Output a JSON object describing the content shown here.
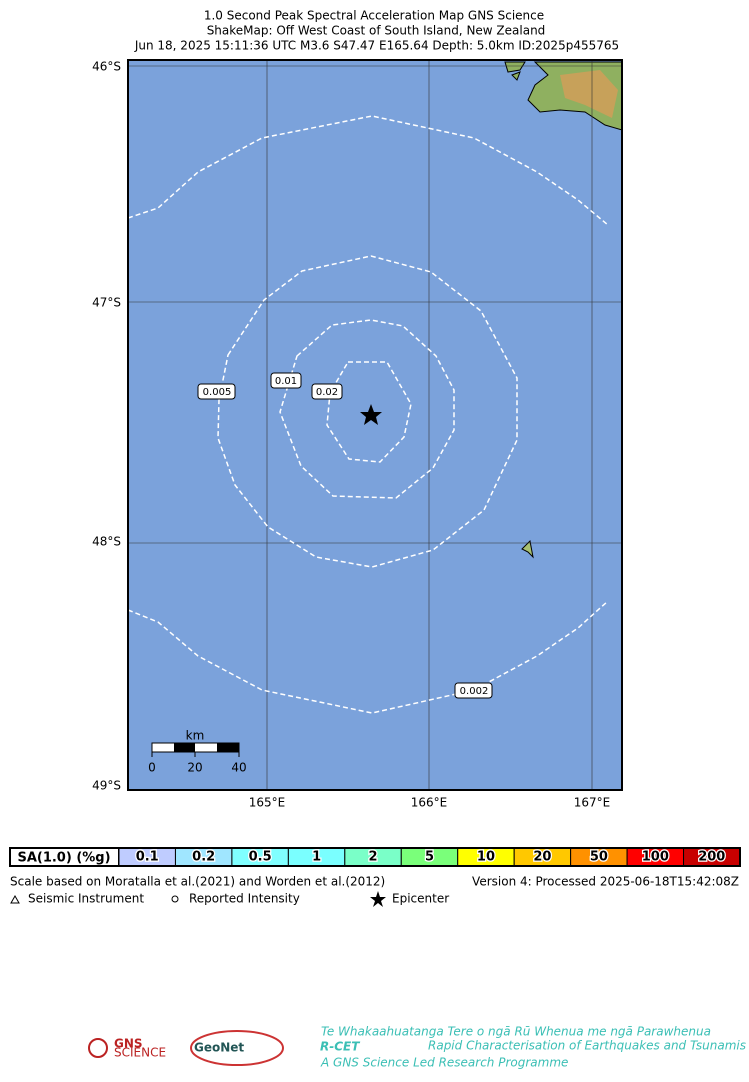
{
  "header": {
    "title_lines": [
      "1.0 Second Peak Spectral Acceleration Map GNS Science",
      "ShakeMap: Off West Coast of South Island, New Zealand",
      "Jun 18, 2025 15:11:36 UTC M3.6 S47.47 E165.64 Depth: 5.0km ID:2025p455765"
    ]
  },
  "map": {
    "lat_labels": [
      "46°S",
      "47°S",
      "48°S",
      "49°S"
    ],
    "lon_labels": [
      "165°E",
      "166°E",
      "167°E"
    ],
    "contour_labels": [
      "0.005",
      "0.01",
      "0.02",
      "0.002"
    ],
    "scale_bar": {
      "unit": "km",
      "labels": [
        "0",
        "20",
        "40"
      ]
    }
  },
  "legend": {
    "header": "SA(1.0) (%g)",
    "items": [
      {
        "label": "0.1",
        "color": "#bfccff"
      },
      {
        "label": "0.2",
        "color": "#a0e6ff"
      },
      {
        "label": "0.5",
        "color": "#80ffff"
      },
      {
        "label": "1",
        "color": "#7affff"
      },
      {
        "label": "2",
        "color": "#7affc8"
      },
      {
        "label": "5",
        "color": "#7aff7a"
      },
      {
        "label": "10",
        "color": "#ffff00"
      },
      {
        "label": "20",
        "color": "#ffc800"
      },
      {
        "label": "50",
        "color": "#ff9100"
      },
      {
        "label": "100",
        "color": "#ff0000"
      },
      {
        "label": "200",
        "color": "#c80000"
      }
    ],
    "note": "Scale based on Moratalla et al.(2021) and Worden et al.(2012)",
    "version": "Version 4: Processed 2025-06-18T15:42:08Z",
    "symbols": [
      "Seismic Instrument",
      "Reported Intensity",
      "Epicenter"
    ]
  },
  "logos": {
    "gns": "GNS",
    "gns_sub": "SCIENCE",
    "geonet": "GeoNet",
    "rcet": "R-CET",
    "rcet_tagline": "Rapid Characterisation of Earthquakes and Tsunamis",
    "rcet_maori": "Te Whakaahuatanga Tere o ngā Rū Whenua me ngā Parawhenua",
    "rcet_footer": "A GNS Science Led Research Programme"
  }
}
